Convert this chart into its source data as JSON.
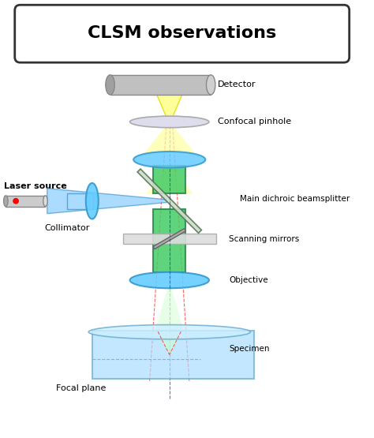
{
  "title": "CLSM observations",
  "title_fontsize": 16,
  "title_fontweight": "bold",
  "background_color": "#ffffff",
  "labels": {
    "detector": "Detector",
    "confocal_pinhole": "Confocal pinhole",
    "laser_source": "Laser source",
    "collimator": "Collimator",
    "main_dichroic": "Main dichroic beamsplitter",
    "scanning_mirrors": "Scanning mirrors",
    "objective": "Objective",
    "specimen": "Specimen",
    "focal_plane": "Focal plane"
  },
  "colors": {
    "beam_yellow": "#ffff00",
    "beam_yellow_light": "#ffffa0",
    "beam_blue": "#00aaff",
    "beam_blue_light": "#aaddff",
    "beam_green": "#00cc44",
    "beam_green_light": "#aaffcc",
    "beam_red_dashed": "#ff2222",
    "beam_blue_dashed": "#2222ff",
    "lens_blue": "#66ccff",
    "lens_edge": "#3399cc",
    "mirror_color": "#cccccc",
    "mirror_edge": "#888888",
    "tube_gray": "#bbbbbb",
    "tube_edge": "#888888",
    "green_tube": "#44cc66",
    "green_tube_edge": "#228844",
    "specimen_fill": "#aaddff",
    "specimen_edge": "#66aacc",
    "specimen_top": "#cceeff",
    "focal_beam": "#ddffdd",
    "title_box_edge": "#333333",
    "laser_body": "#cccccc",
    "red_dot": "#ff0000"
  }
}
